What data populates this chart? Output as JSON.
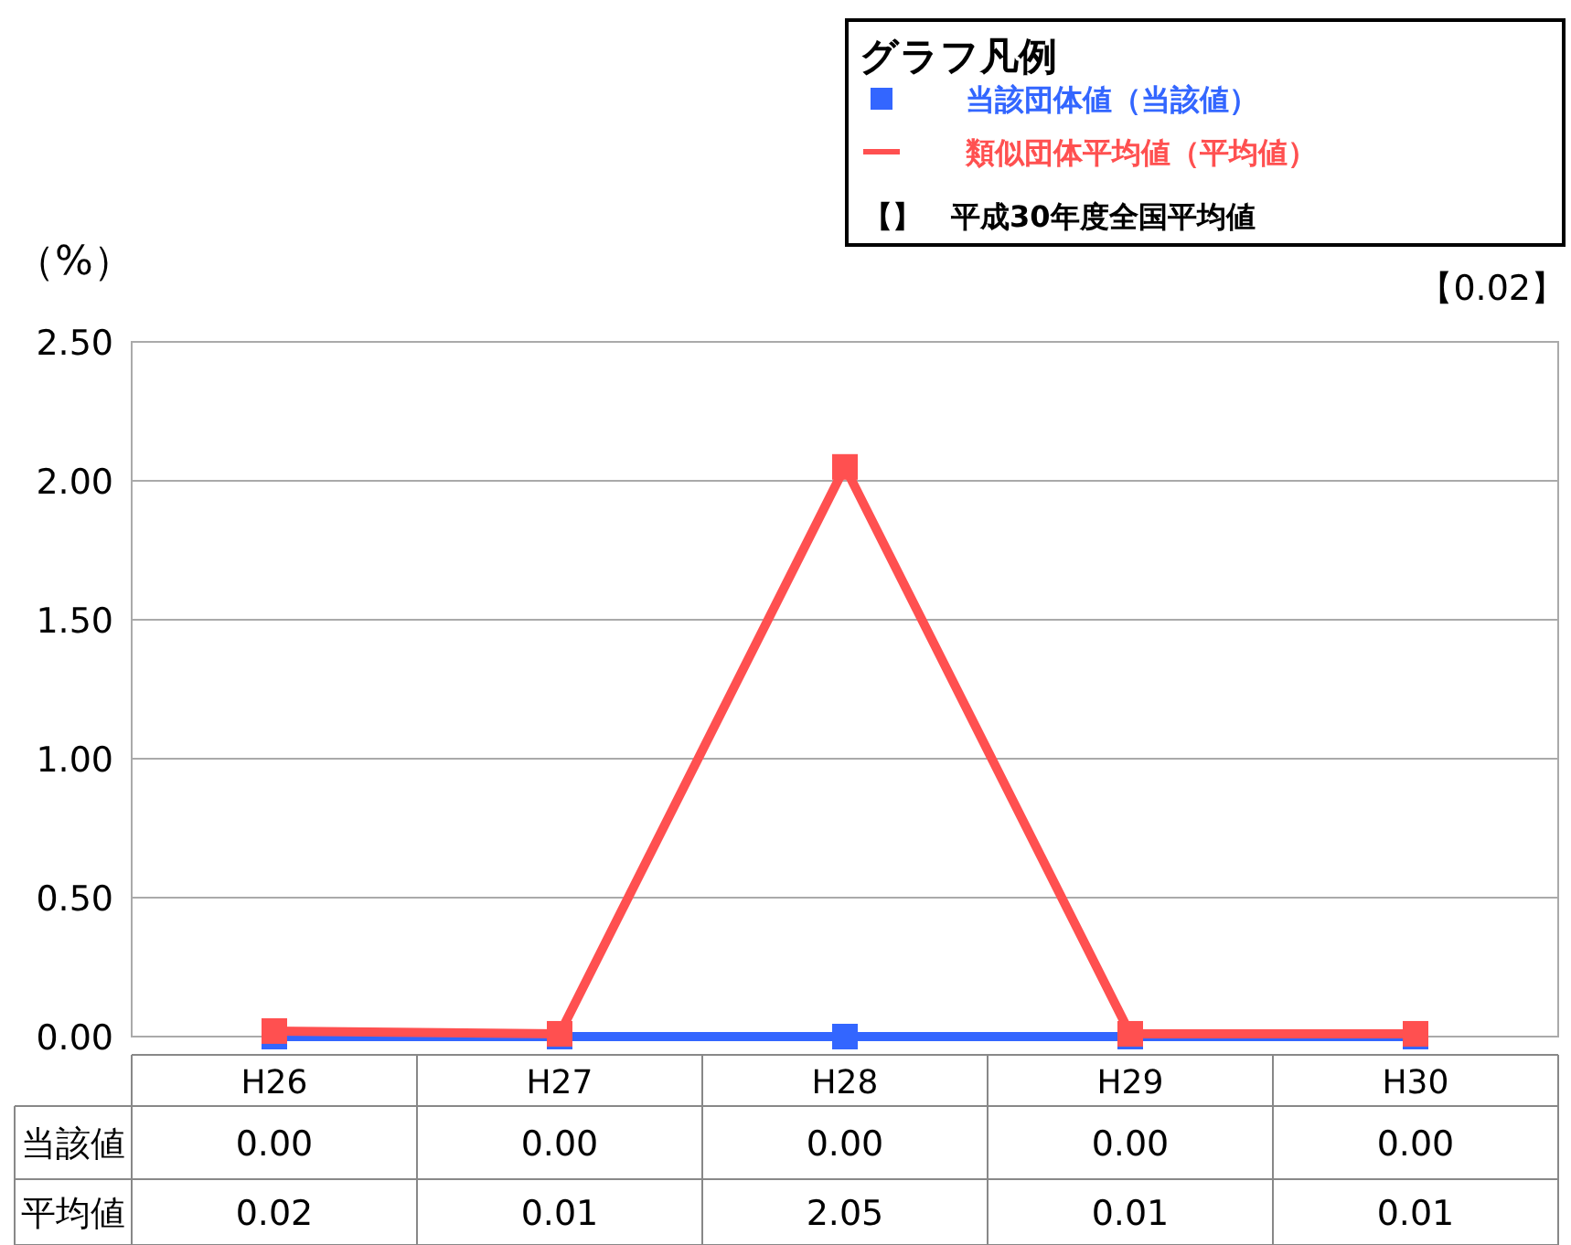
{
  "chart_data": {
    "type": "line",
    "legend_title": "グラフ凡例",
    "ylabel": "（%）",
    "categories": [
      "H26",
      "H27",
      "H28",
      "H29",
      "H30"
    ],
    "series": [
      {
        "name": "当該団体値（当該値）",
        "color": "#3366ff",
        "values": [
          0,
          0,
          0,
          0,
          0
        ],
        "value_labels": [
          "0.00",
          "0.00",
          "0.00",
          "0.00",
          "0.00"
        ]
      },
      {
        "name": "類似団体平均値（平均値）",
        "color": "#ff5050",
        "values": [
          0.02,
          0.01,
          2.05,
          0.01,
          0.01
        ],
        "value_labels": [
          "0.02",
          "0.01",
          "2.05",
          "0.01",
          "0.01"
        ]
      }
    ],
    "ylim": [
      0,
      2.5
    ],
    "yticks": [
      {
        "value": 0,
        "label": "0.00"
      },
      {
        "value": 0.5,
        "label": "0.50"
      },
      {
        "value": 1,
        "label": "1.00"
      },
      {
        "value": 1.5,
        "label": "1.50"
      },
      {
        "value": 2,
        "label": "2.00"
      },
      {
        "value": 2.5,
        "label": "2.50"
      }
    ],
    "grid": "y",
    "legend": "top right",
    "marker": "square",
    "line_style": "solid",
    "annotations": [
      "【0.02】",
      "【】　平成30年度全国平均値",
      "当該値",
      "平均値"
    ]
  }
}
